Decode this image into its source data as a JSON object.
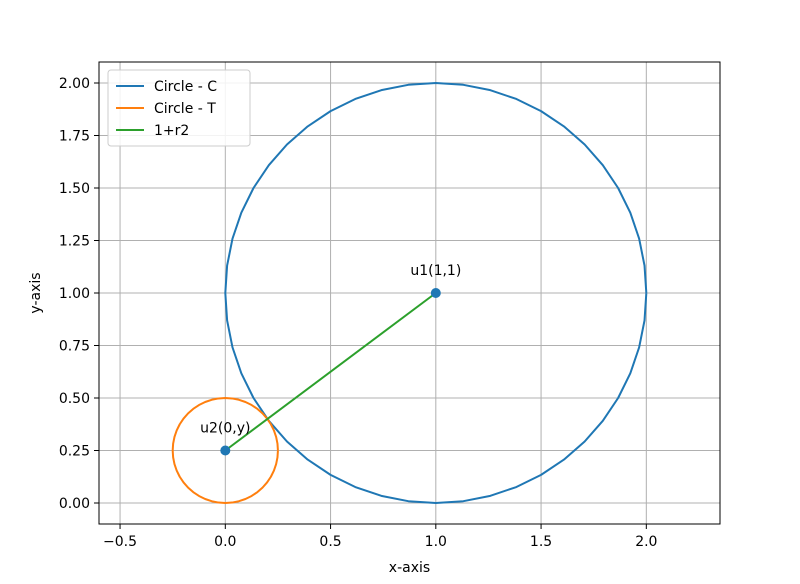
{
  "chart_data": {
    "type": "line",
    "title": "",
    "xlabel": "x-axis",
    "ylabel": "y-axis",
    "xlim": [
      -0.6,
      2.35
    ],
    "ylim": [
      -0.1,
      2.1
    ],
    "xticks": [
      -0.5,
      0.0,
      0.5,
      1.0,
      1.5,
      2.0
    ],
    "xtick_labels": [
      "−0.5",
      "0.0",
      "0.5",
      "1.0",
      "1.5",
      "2.0"
    ],
    "yticks": [
      0.0,
      0.25,
      0.5,
      0.75,
      1.0,
      1.25,
      1.5,
      1.75,
      2.0
    ],
    "ytick_labels": [
      "0.00",
      "0.25",
      "0.50",
      "0.75",
      "1.00",
      "1.25",
      "1.50",
      "1.75",
      "2.00"
    ],
    "grid": true,
    "legend": "top-left",
    "series": [
      {
        "name": "Circle - C",
        "kind": "circle",
        "center": [
          1,
          1
        ],
        "radius": 1,
        "color": "#1f77b4"
      },
      {
        "name": "Circle - T",
        "kind": "circle",
        "center": [
          0,
          0.25
        ],
        "radius": 0.25,
        "color": "#ff7f0e"
      },
      {
        "name": "1+r2",
        "kind": "segment",
        "x": [
          1,
          0
        ],
        "y": [
          1,
          0.25
        ],
        "color": "#2ca02c"
      }
    ],
    "points": [
      {
        "x": 1,
        "y": 1,
        "label": "u1(1,1)",
        "color": "#1f77b4"
      },
      {
        "x": 0,
        "y": 0.25,
        "label": "u2(0,y)",
        "color": "#1f77b4"
      }
    ]
  }
}
